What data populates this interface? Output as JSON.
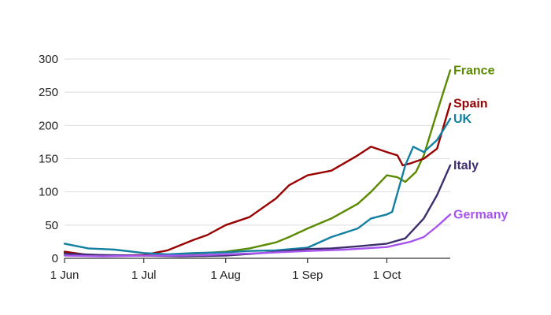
{
  "chart_data": {
    "type": "line",
    "title": "",
    "xlabel": "",
    "ylabel": "",
    "x_range": [
      "2020-06-01",
      "2020-10-25"
    ],
    "ylim": [
      0,
      300
    ],
    "yticks": [
      0,
      50,
      100,
      150,
      200,
      250,
      300
    ],
    "yticks_labels": [
      "0",
      "50",
      "100",
      "150",
      "200",
      "250",
      "300"
    ],
    "xticks": [
      "2020-06-01",
      "2020-07-01",
      "2020-08-01",
      "2020-09-01",
      "2020-10-01"
    ],
    "xticks_labels": [
      "1 Jun",
      "1 Jul",
      "1 Aug",
      "1 Sep",
      "1 Oct"
    ],
    "grid": "horizontal",
    "legend": "direct labels at line ends (right)",
    "series": [
      {
        "name": "France",
        "color": "#5a8a00",
        "points": [
          [
            "2020-06-01",
            8
          ],
          [
            "2020-06-10",
            5
          ],
          [
            "2020-06-20",
            4
          ],
          [
            "2020-07-01",
            4
          ],
          [
            "2020-07-10",
            5
          ],
          [
            "2020-07-20",
            7
          ],
          [
            "2020-08-01",
            10
          ],
          [
            "2020-08-10",
            15
          ],
          [
            "2020-08-20",
            24
          ],
          [
            "2020-08-25",
            32
          ],
          [
            "2020-09-01",
            45
          ],
          [
            "2020-09-10",
            60
          ],
          [
            "2020-09-20",
            82
          ],
          [
            "2020-09-25",
            100
          ],
          [
            "2020-10-01",
            125
          ],
          [
            "2020-10-05",
            122
          ],
          [
            "2020-10-08",
            115
          ],
          [
            "2020-10-12",
            130
          ],
          [
            "2020-10-15",
            155
          ],
          [
            "2020-10-20",
            220
          ],
          [
            "2020-10-25",
            283
          ]
        ]
      },
      {
        "name": "Spain",
        "color": "#990000",
        "points": [
          [
            "2020-06-01",
            10
          ],
          [
            "2020-06-10",
            5
          ],
          [
            "2020-06-20",
            4
          ],
          [
            "2020-07-01",
            5
          ],
          [
            "2020-07-10",
            12
          ],
          [
            "2020-07-20",
            28
          ],
          [
            "2020-07-25",
            35
          ],
          [
            "2020-08-01",
            50
          ],
          [
            "2020-08-10",
            62
          ],
          [
            "2020-08-20",
            90
          ],
          [
            "2020-08-25",
            110
          ],
          [
            "2020-09-01",
            125
          ],
          [
            "2020-09-10",
            132
          ],
          [
            "2020-09-20",
            155
          ],
          [
            "2020-09-25",
            168
          ],
          [
            "2020-10-01",
            160
          ],
          [
            "2020-10-05",
            155
          ],
          [
            "2020-10-07",
            140
          ],
          [
            "2020-10-10",
            143
          ],
          [
            "2020-10-15",
            150
          ],
          [
            "2020-10-20",
            165
          ],
          [
            "2020-10-25",
            233
          ]
        ]
      },
      {
        "name": "UK",
        "color": "#1380a1",
        "points": [
          [
            "2020-06-01",
            22
          ],
          [
            "2020-06-10",
            15
          ],
          [
            "2020-06-20",
            13
          ],
          [
            "2020-07-01",
            8
          ],
          [
            "2020-07-10",
            6
          ],
          [
            "2020-07-20",
            8
          ],
          [
            "2020-08-01",
            9
          ],
          [
            "2020-08-10",
            11
          ],
          [
            "2020-08-20",
            12
          ],
          [
            "2020-09-01",
            16
          ],
          [
            "2020-09-10",
            32
          ],
          [
            "2020-09-20",
            45
          ],
          [
            "2020-09-25",
            60
          ],
          [
            "2020-10-01",
            66
          ],
          [
            "2020-10-03",
            70
          ],
          [
            "2020-10-08",
            140
          ],
          [
            "2020-10-11",
            168
          ],
          [
            "2020-10-15",
            160
          ],
          [
            "2020-10-20",
            178
          ],
          [
            "2020-10-25",
            210
          ]
        ]
      },
      {
        "name": "Italy",
        "color": "#3e2e6e",
        "points": [
          [
            "2020-06-01",
            7
          ],
          [
            "2020-06-15",
            5
          ],
          [
            "2020-07-01",
            4
          ],
          [
            "2020-07-15",
            3
          ],
          [
            "2020-08-01",
            4
          ],
          [
            "2020-08-15",
            8
          ],
          [
            "2020-09-01",
            14
          ],
          [
            "2020-09-10",
            15
          ],
          [
            "2020-09-20",
            18
          ],
          [
            "2020-10-01",
            22
          ],
          [
            "2020-10-08",
            30
          ],
          [
            "2020-10-15",
            60
          ],
          [
            "2020-10-20",
            95
          ],
          [
            "2020-10-25",
            140
          ]
        ]
      },
      {
        "name": "Germany",
        "color": "#a855f0",
        "points": [
          [
            "2020-06-01",
            4
          ],
          [
            "2020-06-15",
            3
          ],
          [
            "2020-07-01",
            4
          ],
          [
            "2020-07-15",
            4
          ],
          [
            "2020-08-01",
            6
          ],
          [
            "2020-08-15",
            8
          ],
          [
            "2020-09-01",
            11
          ],
          [
            "2020-09-15",
            13
          ],
          [
            "2020-10-01",
            17
          ],
          [
            "2020-10-10",
            25
          ],
          [
            "2020-10-15",
            32
          ],
          [
            "2020-10-20",
            48
          ],
          [
            "2020-10-25",
            66
          ]
        ]
      }
    ]
  }
}
